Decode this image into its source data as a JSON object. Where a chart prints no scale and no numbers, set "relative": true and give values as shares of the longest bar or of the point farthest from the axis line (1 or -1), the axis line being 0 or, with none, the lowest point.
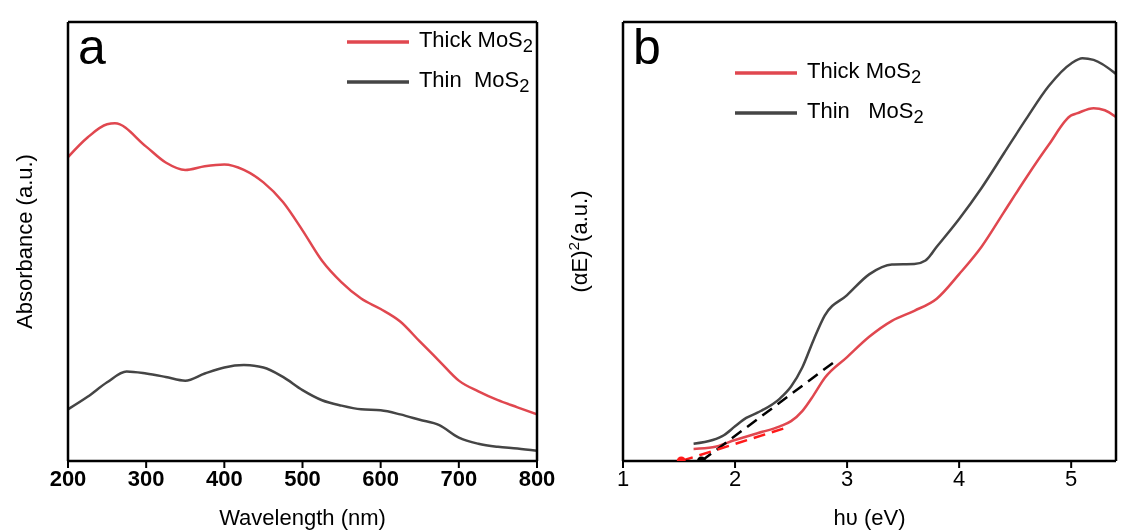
{
  "chart_data": [
    {
      "type": "line",
      "annotations": [
        "a"
      ],
      "xlabel": "Wavelength (nm)",
      "ylabel": "Absorbance (a.u.)",
      "relative": true,
      "xlim": [
        200,
        800
      ],
      "xticks": [
        200,
        300,
        400,
        500,
        600,
        700,
        800
      ],
      "legend": "top right",
      "marker": "none",
      "line_style": "solid",
      "grid": false,
      "series": [
        {
          "name": "Thick MoS$_{2}$",
          "color": "#e0474f",
          "x": [
            200,
            225,
            250,
            260,
            300,
            325,
            350,
            375,
            400,
            425,
            450,
            475,
            500,
            525,
            550,
            575,
            600,
            625,
            650,
            675,
            700,
            725,
            750,
            775,
            800
          ],
          "values": [
            0.9,
            0.958,
            0.997,
            1.0,
            0.931,
            0.884,
            0.862,
            0.873,
            0.878,
            0.862,
            0.825,
            0.767,
            0.683,
            0.593,
            0.529,
            0.481,
            0.45,
            0.413,
            0.354,
            0.296,
            0.238,
            0.206,
            0.18,
            0.159,
            0.138
          ]
        },
        {
          "name": "Thin  MoS$_{2}$",
          "color": "#454545",
          "x": [
            200,
            225,
            250,
            275,
            300,
            325,
            350,
            375,
            400,
            425,
            450,
            475,
            500,
            525,
            550,
            575,
            600,
            625,
            650,
            675,
            700,
            725,
            750,
            775,
            800
          ],
          "values": [
            0.153,
            0.19,
            0.233,
            0.265,
            0.259,
            0.249,
            0.238,
            0.259,
            0.277,
            0.284,
            0.277,
            0.249,
            0.21,
            0.18,
            0.164,
            0.153,
            0.15,
            0.138,
            0.122,
            0.106,
            0.069,
            0.051,
            0.042,
            0.037,
            0.03
          ]
        }
      ]
    },
    {
      "type": "line",
      "annotations": [
        "b"
      ],
      "xlabel": "hυ (eV)",
      "ylabel": "(αE)$^{2}$(a.u.)",
      "relative": true,
      "xlim": [
        1,
        5.4
      ],
      "xticks": [
        1,
        2,
        3,
        4,
        5
      ],
      "legend": "top",
      "marker": "none",
      "line_style": "solid",
      "grid": false,
      "series": [
        {
          "name": "Thick MoS$_{2}$",
          "color": "#e0474f",
          "x": [
            1.63,
            1.8,
            2.0,
            2.2,
            2.4,
            2.5,
            2.6,
            2.7,
            2.8,
            3.0,
            3.2,
            3.4,
            3.6,
            3.8,
            4.0,
            4.2,
            4.4,
            4.6,
            4.8,
            5.0,
            5.05,
            5.2,
            5.3,
            5.4
          ],
          "values": [
            0.03,
            0.034,
            0.052,
            0.069,
            0.086,
            0.099,
            0.124,
            0.163,
            0.206,
            0.258,
            0.309,
            0.348,
            0.373,
            0.403,
            0.464,
            0.532,
            0.618,
            0.704,
            0.785,
            0.858,
            0.863,
            0.876,
            0.871,
            0.854
          ]
        },
        {
          "name": "Thin   MoS$_{2}$",
          "color": "#454545",
          "x": [
            1.63,
            1.8,
            1.9,
            2.0,
            2.1,
            2.2,
            2.4,
            2.5,
            2.6,
            2.7,
            2.8,
            3.0,
            3.2,
            3.4,
            3.6,
            3.7,
            3.8,
            4.0,
            4.2,
            4.4,
            4.6,
            4.8,
            5.0,
            5.1,
            5.2,
            5.4
          ],
          "values": [
            0.043,
            0.052,
            0.064,
            0.086,
            0.107,
            0.12,
            0.155,
            0.185,
            0.232,
            0.3,
            0.361,
            0.412,
            0.464,
            0.488,
            0.489,
            0.498,
            0.532,
            0.601,
            0.678,
            0.764,
            0.85,
            0.931,
            0.987,
            1.0,
            0.996,
            0.961
          ]
        },
        {
          "type": "line",
          "color": "#000000",
          "line_style": "dashed",
          "x": [
            1.7,
            2.9
          ],
          "values": [
            0,
            0.249
          ]
        },
        {
          "type": "line",
          "color": "#ff1a1a",
          "line_style": "dashed",
          "x": [
            1.52,
            2.45
          ],
          "values": [
            0,
            0.082
          ]
        },
        {
          "type": "scatter",
          "color": "#ff1a1a",
          "marker": "circle",
          "x": [
            1.52
          ],
          "values": [
            0
          ]
        },
        {
          "type": "scatter",
          "color": "#000000",
          "marker": "circle",
          "x": [
            1.7
          ],
          "values": [
            0
          ]
        }
      ]
    }
  ]
}
